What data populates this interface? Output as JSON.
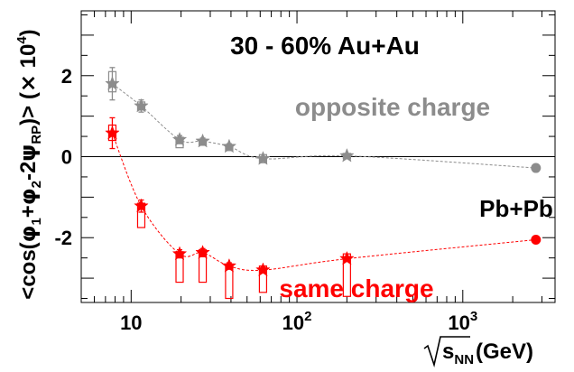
{
  "chart_data": {
    "type": "scatter",
    "title": "30 - 60% Au+Au",
    "xlabel": "(GeV)",
    "xlabel_symbol": "s",
    "xlabel_sub": "NN",
    "ylabel": "<cos(φ1+φ2-2ψRP)> (× 10⁴)",
    "ylabel_parts": {
      "start": "<cos(",
      "phi1": "φ",
      "sub1": "1",
      "plus": "+",
      "phi2": "φ",
      "sub2": "2",
      "minus": "-2",
      "psi": "ψ",
      "subrp": "RP",
      "end": ")> (",
      "times": "×",
      "ten": " 10",
      "exp": "4",
      "close": ")"
    },
    "x_scale": "log",
    "xlim": [
      5,
      3600
    ],
    "ylim": [
      -3.6,
      3.6
    ],
    "x_ticks": [
      {
        "value": 10,
        "base": "10",
        "exp": ""
      },
      {
        "value": 100,
        "base": "10",
        "exp": "2"
      },
      {
        "value": 1000,
        "base": "10",
        "exp": "3"
      }
    ],
    "y_ticks": [
      {
        "value": 2,
        "label": "2"
      },
      {
        "value": 0,
        "label": "0"
      },
      {
        "value": -2,
        "label": "-2"
      }
    ],
    "grid": false,
    "annotations": {
      "pbpb": "Pb+Pb"
    },
    "series": [
      {
        "name": "opposite charge",
        "color": "#8c8c8c",
        "x": [
          7.7,
          11.5,
          19.6,
          27,
          39,
          62.4,
          200
        ],
        "y": [
          1.8,
          1.25,
          0.42,
          0.38,
          0.25,
          -0.05,
          0.02
        ],
        "err": [
          0.4,
          0.15,
          0.1,
          0.08,
          0.07,
          0.05,
          0.03
        ],
        "sys_low": [
          1.6,
          1.15,
          0.22,
          0.28,
          0.15,
          -0.15,
          -0.05
        ],
        "sys_high": [
          2.1,
          1.35,
          0.48,
          0.42,
          0.28,
          0.05,
          0.08
        ]
      },
      {
        "name": "same charge",
        "color": "#ff0000",
        "x": [
          7.7,
          11.5,
          19.6,
          27,
          39,
          62.4,
          200
        ],
        "y": [
          0.58,
          -1.22,
          -2.4,
          -2.37,
          -2.7,
          -2.8,
          -2.52
        ],
        "err": [
          0.38,
          0.15,
          0.1,
          0.1,
          0.08,
          0.07,
          0.05
        ],
        "sys_low": [
          0.4,
          -1.75,
          -3.1,
          -3.1,
          -3.5,
          -3.35,
          -3.45
        ],
        "sys_high": [
          0.78,
          -1.15,
          -2.35,
          -2.3,
          -2.7,
          -2.7,
          -2.4
        ]
      }
    ],
    "pbpb_points": [
      {
        "x": 2760,
        "y": -0.28,
        "color": "#8c8c8c"
      },
      {
        "x": 2760,
        "y": -2.05,
        "color": "#ff0000"
      }
    ]
  }
}
